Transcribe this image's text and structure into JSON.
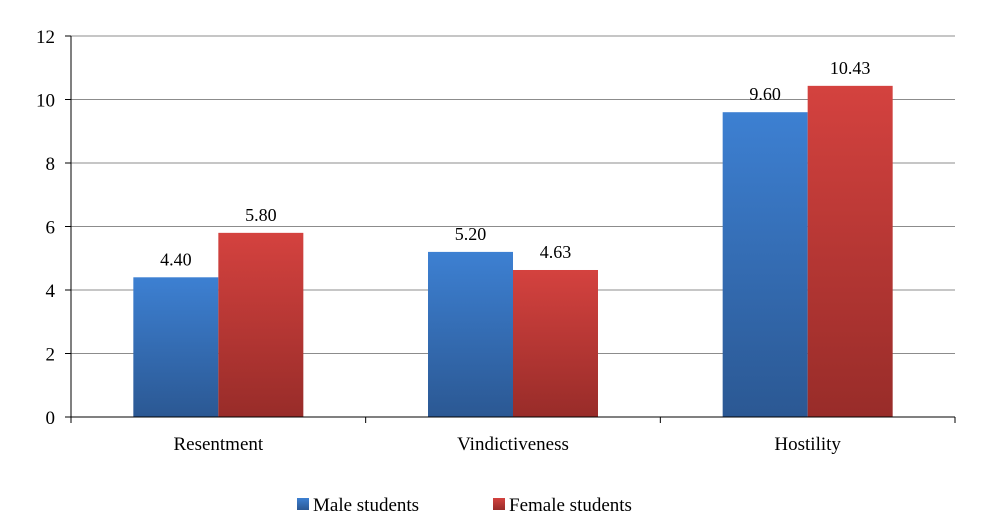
{
  "chart_data": {
    "type": "bar",
    "categories": [
      "Resentment",
      "Vindictiveness",
      "Hostility"
    ],
    "series": [
      {
        "name": "Male students",
        "values": [
          4.4,
          5.2,
          9.6
        ],
        "labels": [
          "4.40",
          "5.20",
          "9.60"
        ],
        "color": "#3b7bcb"
      },
      {
        "name": "Female students",
        "values": [
          5.8,
          4.63,
          10.43
        ],
        "labels": [
          "5.80",
          "4.63",
          "10.43"
        ],
        "color": "#c83a37"
      }
    ],
    "ylim": [
      0,
      12
    ],
    "yticks": [
      "0",
      "2",
      "4",
      "6",
      "8",
      "10",
      "12"
    ],
    "grid": true,
    "legend": "bottom",
    "title": "",
    "xlabel": "",
    "ylabel": ""
  }
}
